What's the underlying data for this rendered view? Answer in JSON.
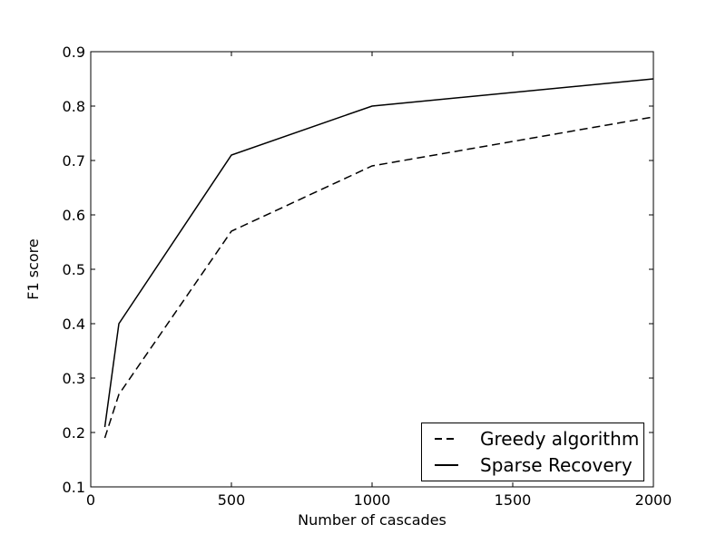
{
  "figure": {
    "background": "#ffffff",
    "foreground": "#000000"
  },
  "chart_data": {
    "type": "line",
    "title": "",
    "xlabel": "Number of cascades",
    "ylabel": "F1 score",
    "xlim": [
      0,
      2000
    ],
    "ylim": [
      0.1,
      0.9
    ],
    "xticks": [
      0,
      500,
      1000,
      1500,
      2000
    ],
    "yticks": [
      0.1,
      0.2,
      0.3,
      0.4,
      0.5,
      0.6,
      0.7,
      0.8,
      0.9
    ],
    "grid": false,
    "x": [
      50,
      100,
      500,
      1000,
      2000
    ],
    "series": [
      {
        "name": "Greedy algorithm",
        "line_style": "dashed",
        "color": "#000000",
        "values": [
          0.19,
          0.27,
          0.57,
          0.69,
          0.78
        ]
      },
      {
        "name": "Sparse Recovery",
        "line_style": "solid",
        "color": "#000000",
        "values": [
          0.21,
          0.4,
          0.71,
          0.8,
          0.85
        ]
      }
    ],
    "legend": {
      "position": "lower-right",
      "border_color": "#000000",
      "background": "#ffffff"
    }
  }
}
